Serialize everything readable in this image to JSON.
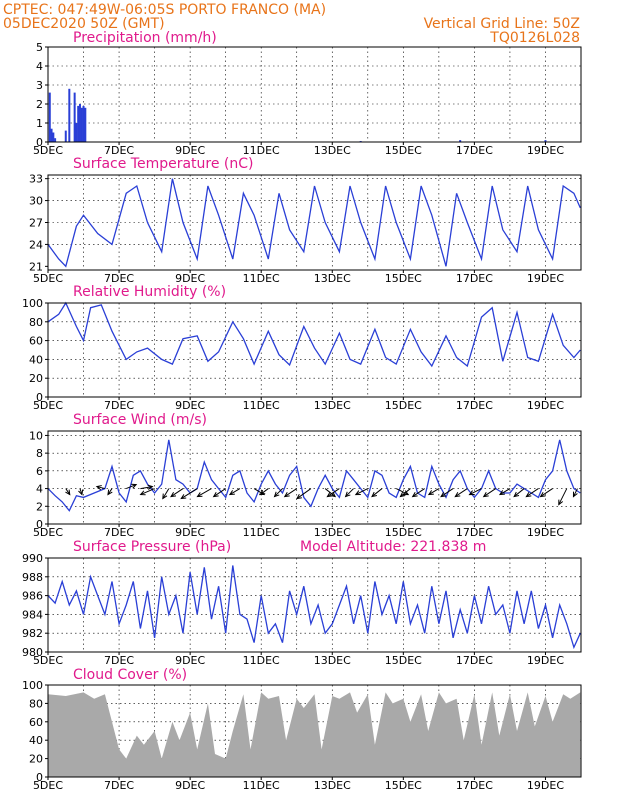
{
  "header": {
    "left_line1": "CPTEC:   047:49W-06:05S   PORTO FRANCO (MA)",
    "left_line2": "05DEC2020 50Z (GMT)",
    "right_line1": "Vertical Grid Line: 50Z",
    "right_line2": "TQ0126L028"
  },
  "colors": {
    "header": "#e8741a",
    "panel_title": "#e01a8c",
    "series": "#2a3fd6",
    "cloud": "#a9a9a9"
  },
  "chart_data": [
    {
      "type": "bar",
      "title": "Precipitation (mm/h)",
      "ylim": [
        0,
        5
      ],
      "yticks": [
        0,
        1,
        2,
        3,
        4,
        5
      ],
      "xtick_labels": [
        "5DEC",
        "7DEC",
        "9DEC",
        "11DEC",
        "13DEC",
        "15DEC",
        "17DEC",
        "19DEC"
      ],
      "x": [
        0.05,
        0.1,
        0.15,
        0.2,
        0.5,
        0.6,
        0.75,
        0.8,
        0.85,
        0.9,
        0.95,
        1.0,
        1.05,
        8.8,
        11.6,
        14.0
      ],
      "values": [
        2.6,
        0.7,
        0.5,
        0.2,
        0.6,
        2.8,
        2.6,
        1.0,
        1.9,
        2.0,
        1.8,
        1.9,
        1.8,
        0.05,
        0.1,
        0.1
      ],
      "grid": true
    },
    {
      "type": "line",
      "title": "Surface Temperature (nC)",
      "ylim": [
        20.5,
        33.5
      ],
      "yticks": [
        21,
        24,
        27,
        30,
        33
      ],
      "xtick_labels": [
        "5DEC",
        "7DEC",
        "9DEC",
        "11DEC",
        "13DEC",
        "15DEC",
        "17DEC",
        "19DEC"
      ],
      "x": [
        0,
        0.3,
        0.5,
        0.8,
        1.0,
        1.4,
        1.8,
        2.2,
        2.5,
        2.8,
        3.2,
        3.5,
        3.8,
        4.2,
        4.5,
        4.8,
        5.2,
        5.5,
        5.8,
        6.2,
        6.5,
        6.8,
        7.2,
        7.5,
        7.8,
        8.2,
        8.5,
        8.8,
        9.2,
        9.5,
        9.8,
        10.2,
        10.5,
        10.8,
        11.2,
        11.5,
        11.8,
        12.2,
        12.5,
        12.8,
        13.2,
        13.5,
        13.8,
        14.2,
        14.5,
        14.8,
        14.98
      ],
      "values": [
        24,
        22,
        21,
        26.5,
        28,
        25.5,
        24,
        31,
        32,
        27,
        23,
        33,
        27,
        22,
        32,
        28,
        22,
        31,
        28,
        22,
        31,
        26,
        23,
        32,
        27,
        23,
        32,
        27,
        22,
        32,
        27,
        22,
        32,
        28,
        21,
        31,
        27,
        22,
        32,
        26,
        23,
        32,
        26,
        22,
        32,
        31,
        29
      ],
      "grid": true
    },
    {
      "type": "line",
      "title": "Relative Humidity (%)",
      "ylim": [
        0,
        100
      ],
      "yticks": [
        0,
        20,
        40,
        60,
        80,
        100
      ],
      "xtick_labels": [
        "5DEC",
        "7DEC",
        "9DEC",
        "11DEC",
        "13DEC",
        "15DEC",
        "17DEC",
        "19DEC"
      ],
      "x": [
        0,
        0.3,
        0.5,
        0.8,
        1.0,
        1.2,
        1.5,
        1.8,
        2.2,
        2.5,
        2.8,
        3.2,
        3.5,
        3.8,
        4.2,
        4.5,
        4.8,
        5.2,
        5.5,
        5.8,
        6.2,
        6.5,
        6.8,
        7.2,
        7.5,
        7.8,
        8.2,
        8.5,
        8.8,
        9.2,
        9.5,
        9.8,
        10.2,
        10.5,
        10.8,
        11.2,
        11.5,
        11.8,
        12.2,
        12.5,
        12.8,
        13.2,
        13.5,
        13.8,
        14.2,
        14.5,
        14.8,
        14.98
      ],
      "values": [
        80,
        88,
        100,
        75,
        60,
        95,
        98,
        70,
        40,
        48,
        52,
        40,
        35,
        62,
        65,
        38,
        48,
        80,
        62,
        35,
        70,
        45,
        34,
        75,
        52,
        35,
        68,
        40,
        35,
        72,
        42,
        35,
        72,
        48,
        33,
        65,
        42,
        33,
        85,
        95,
        38,
        90,
        42,
        38,
        88,
        55,
        42,
        50
      ],
      "grid": true
    },
    {
      "type": "line",
      "title": "Surface Wind (m/s)",
      "ylim": [
        0,
        10.5
      ],
      "yticks": [
        0,
        2,
        4,
        6,
        8,
        10
      ],
      "xtick_labels": [
        "5DEC",
        "7DEC",
        "9DEC",
        "11DEC",
        "13DEC",
        "15DEC",
        "17DEC",
        "19DEC"
      ],
      "x": [
        0,
        0.2,
        0.4,
        0.6,
        0.8,
        1.0,
        1.3,
        1.6,
        1.8,
        2.0,
        2.2,
        2.4,
        2.6,
        2.8,
        3.0,
        3.2,
        3.4,
        3.6,
        3.8,
        4.0,
        4.2,
        4.4,
        4.6,
        4.8,
        5.0,
        5.2,
        5.4,
        5.6,
        5.8,
        6.0,
        6.2,
        6.4,
        6.6,
        6.8,
        7.0,
        7.2,
        7.4,
        7.6,
        7.8,
        8.0,
        8.2,
        8.4,
        8.6,
        8.8,
        9.0,
        9.2,
        9.4,
        9.6,
        9.8,
        10.0,
        10.2,
        10.4,
        10.6,
        10.8,
        11.0,
        11.2,
        11.4,
        11.6,
        11.8,
        12.0,
        12.2,
        12.4,
        12.6,
        12.8,
        13.0,
        13.2,
        13.4,
        13.6,
        13.8,
        14.0,
        14.2,
        14.4,
        14.6,
        14.8,
        14.98
      ],
      "values": [
        4,
        3.2,
        2.5,
        1.5,
        3.2,
        3,
        3.5,
        4,
        6.5,
        3.5,
        2.5,
        5.5,
        6,
        4.5,
        3.5,
        4.5,
        9.5,
        5,
        4.5,
        3.5,
        4,
        7,
        5,
        4,
        3,
        5.5,
        6,
        3.5,
        2.5,
        4.5,
        6,
        4.5,
        3.5,
        5.5,
        6.5,
        3,
        2,
        4,
        5.5,
        4,
        3,
        6,
        5,
        4,
        3,
        6,
        5.5,
        3.5,
        3,
        5,
        6.5,
        3.5,
        3,
        6.5,
        4.5,
        3,
        5,
        6,
        4,
        3,
        4,
        6,
        4,
        3.5,
        3.5,
        4.5,
        4,
        3.5,
        3,
        5,
        6,
        9.5,
        6,
        4,
        3.5
      ],
      "wind_arrows": {
        "x": [
          0.5,
          0.9,
          1.6,
          1.8,
          2.2,
          2.6,
          3.0,
          3.4,
          3.8,
          4.2,
          4.6,
          5.0,
          5.4,
          5.8,
          6.2,
          6.6,
          7.0,
          7.4,
          7.8,
          8.2,
          8.6,
          9.0,
          9.4,
          9.8,
          10.2,
          10.6,
          11.0,
          11.4,
          11.8,
          12.2,
          12.6,
          13.0,
          13.4,
          13.8,
          14.2,
          14.6,
          14.9
        ],
        "u": [
          1,
          0.5,
          -2,
          -1,
          2.5,
          3,
          -3.5,
          -1.5,
          -3,
          -4,
          -3.5,
          -3,
          -2.5,
          2.5,
          -2,
          -2,
          -3,
          -3.5,
          2.5,
          -3,
          -2,
          -3,
          -2.5,
          3,
          -2.5,
          -3,
          -2.5,
          -3,
          -3,
          -3,
          -3,
          -2.5,
          -2.5,
          -3,
          -3,
          -2,
          -1
        ],
        "v": [
          -1.5,
          -1.5,
          0.5,
          -1.5,
          1,
          0.5,
          -1.5,
          -2.5,
          -2,
          -2.5,
          -2,
          -2,
          -1.5,
          -1.5,
          -1.5,
          -2,
          -2,
          -2.5,
          -2,
          -2,
          -2,
          -1.5,
          -2,
          -1.5,
          -2,
          -2,
          -1.5,
          -2,
          -2,
          -1.5,
          -2,
          -1.5,
          -2,
          -2,
          -2,
          -4,
          -2
        ]
      },
      "grid": true
    },
    {
      "type": "line",
      "title": "Surface Pressure (hPa)",
      "annotation": "Model Altitude: 221.838 m",
      "ylim": [
        980,
        990
      ],
      "yticks": [
        980,
        982,
        984,
        986,
        988,
        990
      ],
      "xtick_labels": [
        "5DEC",
        "7DEC",
        "9DEC",
        "11DEC",
        "13DEC",
        "15DEC",
        "17DEC",
        "19DEC"
      ],
      "x": [
        0,
        0.2,
        0.4,
        0.6,
        0.8,
        1.0,
        1.2,
        1.4,
        1.6,
        1.8,
        2.0,
        2.2,
        2.4,
        2.6,
        2.8,
        3.0,
        3.2,
        3.4,
        3.6,
        3.8,
        4.0,
        4.2,
        4.4,
        4.6,
        4.8,
        5.0,
        5.2,
        5.4,
        5.6,
        5.8,
        6.0,
        6.2,
        6.4,
        6.6,
        6.8,
        7.0,
        7.2,
        7.4,
        7.6,
        7.8,
        8.0,
        8.2,
        8.4,
        8.6,
        8.8,
        9.0,
        9.2,
        9.4,
        9.6,
        9.8,
        10.0,
        10.2,
        10.4,
        10.6,
        10.8,
        11.0,
        11.2,
        11.4,
        11.6,
        11.8,
        12.0,
        12.2,
        12.4,
        12.6,
        12.8,
        13.0,
        13.2,
        13.4,
        13.6,
        13.8,
        14.0,
        14.2,
        14.4,
        14.6,
        14.8,
        14.98
      ],
      "values": [
        986,
        985.2,
        987.5,
        985,
        986.5,
        984,
        988,
        986,
        984,
        987.5,
        983,
        985,
        987.5,
        982.5,
        986.5,
        981.5,
        988,
        984,
        986,
        982,
        988.5,
        984,
        989,
        983.5,
        987,
        982,
        989.2,
        984,
        983.5,
        981,
        986,
        982,
        983,
        981,
        986.5,
        984,
        987,
        983,
        985,
        982,
        983,
        985,
        987,
        983,
        986,
        982,
        987.5,
        984,
        986,
        983,
        987.5,
        983,
        985,
        982,
        987,
        983,
        986.5,
        981.5,
        984.5,
        982,
        986,
        983,
        987,
        984,
        985,
        982,
        986.5,
        983,
        986.5,
        982.5,
        985,
        981.5,
        985,
        983,
        980.5,
        982
      ],
      "grid": true
    },
    {
      "type": "area",
      "title": "Cloud Cover (%)",
      "ylim": [
        0,
        100
      ],
      "yticks": [
        0,
        20,
        40,
        60,
        80,
        100
      ],
      "xtick_labels": [
        "5DEC",
        "7DEC",
        "9DEC",
        "11DEC",
        "13DEC",
        "15DEC",
        "17DEC",
        "19DEC"
      ],
      "x": [
        0,
        0.5,
        1.0,
        1.3,
        1.6,
        2.0,
        2.2,
        2.5,
        2.7,
        3.0,
        3.2,
        3.5,
        3.7,
        4.0,
        4.2,
        4.5,
        4.7,
        5.0,
        5.2,
        5.5,
        5.7,
        6.0,
        6.2,
        6.5,
        6.7,
        7.0,
        7.2,
        7.5,
        7.7,
        8.0,
        8.2,
        8.5,
        8.7,
        9.0,
        9.2,
        9.5,
        9.7,
        10.0,
        10.2,
        10.5,
        10.7,
        11.0,
        11.2,
        11.5,
        11.7,
        12.0,
        12.2,
        12.5,
        12.7,
        13.0,
        13.2,
        13.5,
        13.7,
        14.0,
        14.2,
        14.5,
        14.7,
        14.98
      ],
      "values": [
        90,
        88,
        92,
        85,
        90,
        30,
        20,
        45,
        35,
        50,
        20,
        60,
        40,
        70,
        30,
        80,
        25,
        20,
        50,
        90,
        30,
        92,
        85,
        88,
        40,
        85,
        75,
        90,
        30,
        88,
        85,
        92,
        70,
        90,
        35,
        92,
        80,
        85,
        60,
        90,
        50,
        92,
        80,
        85,
        40,
        90,
        35,
        92,
        45,
        90,
        50,
        92,
        55,
        88,
        60,
        90,
        85,
        92
      ],
      "grid": true
    }
  ]
}
